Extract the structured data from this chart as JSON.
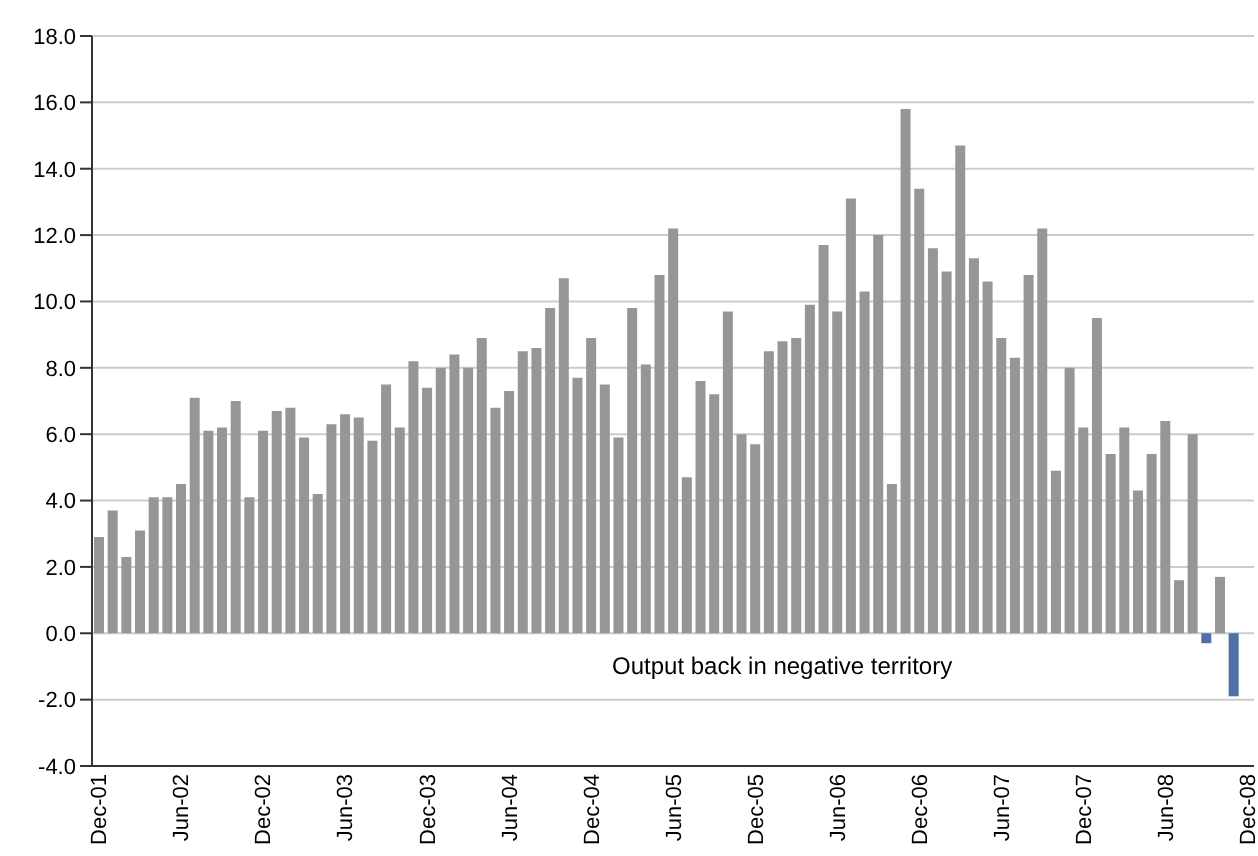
{
  "chart_data": {
    "type": "bar",
    "categories": [
      "Dec-01",
      null,
      null,
      null,
      null,
      null,
      "Jun-02",
      null,
      null,
      null,
      null,
      null,
      "Dec-02",
      null,
      null,
      null,
      null,
      null,
      "Jun-03",
      null,
      null,
      null,
      null,
      null,
      "Dec-03",
      null,
      null,
      null,
      null,
      null,
      "Jun-04",
      null,
      null,
      null,
      null,
      null,
      "Dec-04",
      null,
      null,
      null,
      null,
      null,
      "Jun-05",
      null,
      null,
      null,
      null,
      null,
      "Dec-05",
      null,
      null,
      null,
      null,
      null,
      "Jun-06",
      null,
      null,
      null,
      null,
      null,
      "Dec-06",
      null,
      null,
      null,
      null,
      null,
      "Jun-07",
      null,
      null,
      null,
      null,
      null,
      "Dec-07",
      null,
      null,
      null,
      null,
      null,
      "Jun-08",
      null,
      null,
      null,
      null,
      null,
      "Dec-08"
    ],
    "values": [
      2.9,
      3.7,
      2.3,
      3.1,
      4.1,
      4.1,
      4.5,
      7.1,
      6.1,
      6.2,
      7.0,
      4.1,
      6.1,
      6.7,
      6.8,
      5.9,
      4.2,
      6.3,
      6.6,
      6.5,
      5.8,
      7.5,
      6.2,
      8.2,
      7.4,
      8.0,
      8.4,
      8.0,
      8.9,
      6.8,
      7.3,
      8.5,
      8.6,
      9.8,
      10.7,
      7.7,
      8.9,
      7.5,
      5.9,
      9.8,
      8.1,
      10.8,
      12.2,
      4.7,
      7.6,
      7.2,
      9.7,
      6.0,
      5.7,
      8.5,
      8.8,
      8.9,
      9.9,
      11.7,
      9.7,
      13.1,
      10.3,
      12.0,
      4.5,
      15.8,
      13.4,
      11.6,
      10.9,
      14.7,
      11.3,
      10.6,
      8.9,
      8.3,
      10.8,
      12.2,
      4.9,
      8.0,
      6.2,
      9.5,
      5.4,
      6.2,
      4.3,
      5.4,
      6.4,
      1.6,
      6.0,
      -0.3,
      1.7,
      -1.9,
      null
    ],
    "colors": [
      "#969696",
      "#969696",
      "#969696",
      "#969696",
      "#969696",
      "#969696",
      "#969696",
      "#969696",
      "#969696",
      "#969696",
      "#969696",
      "#969696",
      "#969696",
      "#969696",
      "#969696",
      "#969696",
      "#969696",
      "#969696",
      "#969696",
      "#969696",
      "#969696",
      "#969696",
      "#969696",
      "#969696",
      "#969696",
      "#969696",
      "#969696",
      "#969696",
      "#969696",
      "#969696",
      "#969696",
      "#969696",
      "#969696",
      "#969696",
      "#969696",
      "#969696",
      "#969696",
      "#969696",
      "#969696",
      "#969696",
      "#969696",
      "#969696",
      "#969696",
      "#969696",
      "#969696",
      "#969696",
      "#969696",
      "#969696",
      "#969696",
      "#969696",
      "#969696",
      "#969696",
      "#969696",
      "#969696",
      "#969696",
      "#969696",
      "#969696",
      "#969696",
      "#969696",
      "#969696",
      "#969696",
      "#969696",
      "#969696",
      "#969696",
      "#969696",
      "#969696",
      "#969696",
      "#969696",
      "#969696",
      "#969696",
      "#969696",
      "#969696",
      "#969696",
      "#969696",
      "#969696",
      "#969696",
      "#969696",
      "#969696",
      "#969696",
      "#969696",
      "#969696",
      "#4f6fa8",
      "#969696",
      "#4f6fa8",
      "#969696"
    ],
    "ylim": [
      -4,
      18
    ],
    "yticks": [
      {
        "value": -4,
        "label": "-4.0"
      },
      {
        "value": -2,
        "label": "-2.0"
      },
      {
        "value": 0,
        "label": "0.0"
      },
      {
        "value": 2,
        "label": "2.0"
      },
      {
        "value": 4,
        "label": "4.0"
      },
      {
        "value": 6,
        "label": "6.0"
      },
      {
        "value": 8,
        "label": "8.0"
      },
      {
        "value": 10,
        "label": "10.0"
      },
      {
        "value": 12,
        "label": "12.0"
      },
      {
        "value": 14,
        "label": "14.0"
      },
      {
        "value": 16,
        "label": "16.0"
      },
      {
        "value": 18,
        "label": "18.0"
      }
    ],
    "grid": "y",
    "annotations": [
      "Output back in negative territory"
    ]
  }
}
